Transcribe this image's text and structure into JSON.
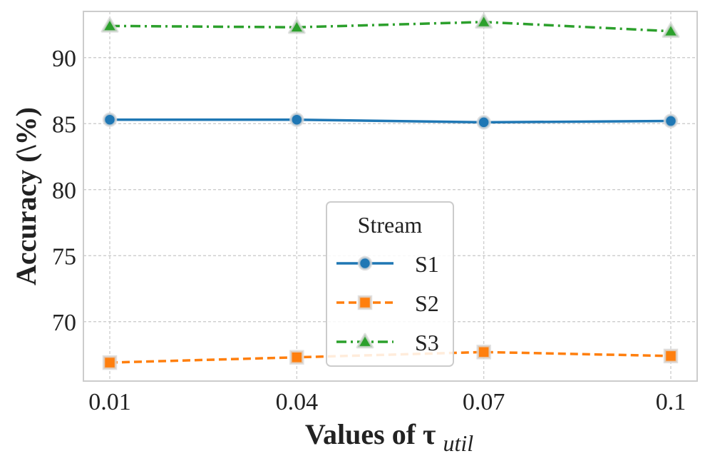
{
  "chart_data": {
    "type": "line",
    "title": "",
    "xlabel": "Values of τ",
    "xlabel_subscript": "util",
    "ylabel": "Accuracy (\\%)",
    "categories": [
      "0.01",
      "0.04",
      "0.07",
      "0.1"
    ],
    "ylim": [
      65.5,
      93.5
    ],
    "yticks": [
      70,
      75,
      80,
      85,
      90
    ],
    "ytick_labels": [
      "70",
      "75",
      "80",
      "85",
      "90"
    ],
    "grid": true,
    "legend": {
      "title": "Stream",
      "placement": "center-bottom"
    },
    "series": [
      {
        "name": "S1",
        "values": [
          85.3,
          85.3,
          85.1,
          85.2
        ],
        "color": "#1f77b4",
        "marker": "circle",
        "linestyle": "solid"
      },
      {
        "name": "S2",
        "values": [
          66.9,
          67.3,
          67.7,
          67.4
        ],
        "color": "#ff7f0e",
        "marker": "square",
        "linestyle": "dashed"
      },
      {
        "name": "S3",
        "values": [
          92.4,
          92.3,
          92.7,
          92.0
        ],
        "color": "#2ca02c",
        "marker": "triangle",
        "linestyle": "dashdot"
      }
    ]
  }
}
